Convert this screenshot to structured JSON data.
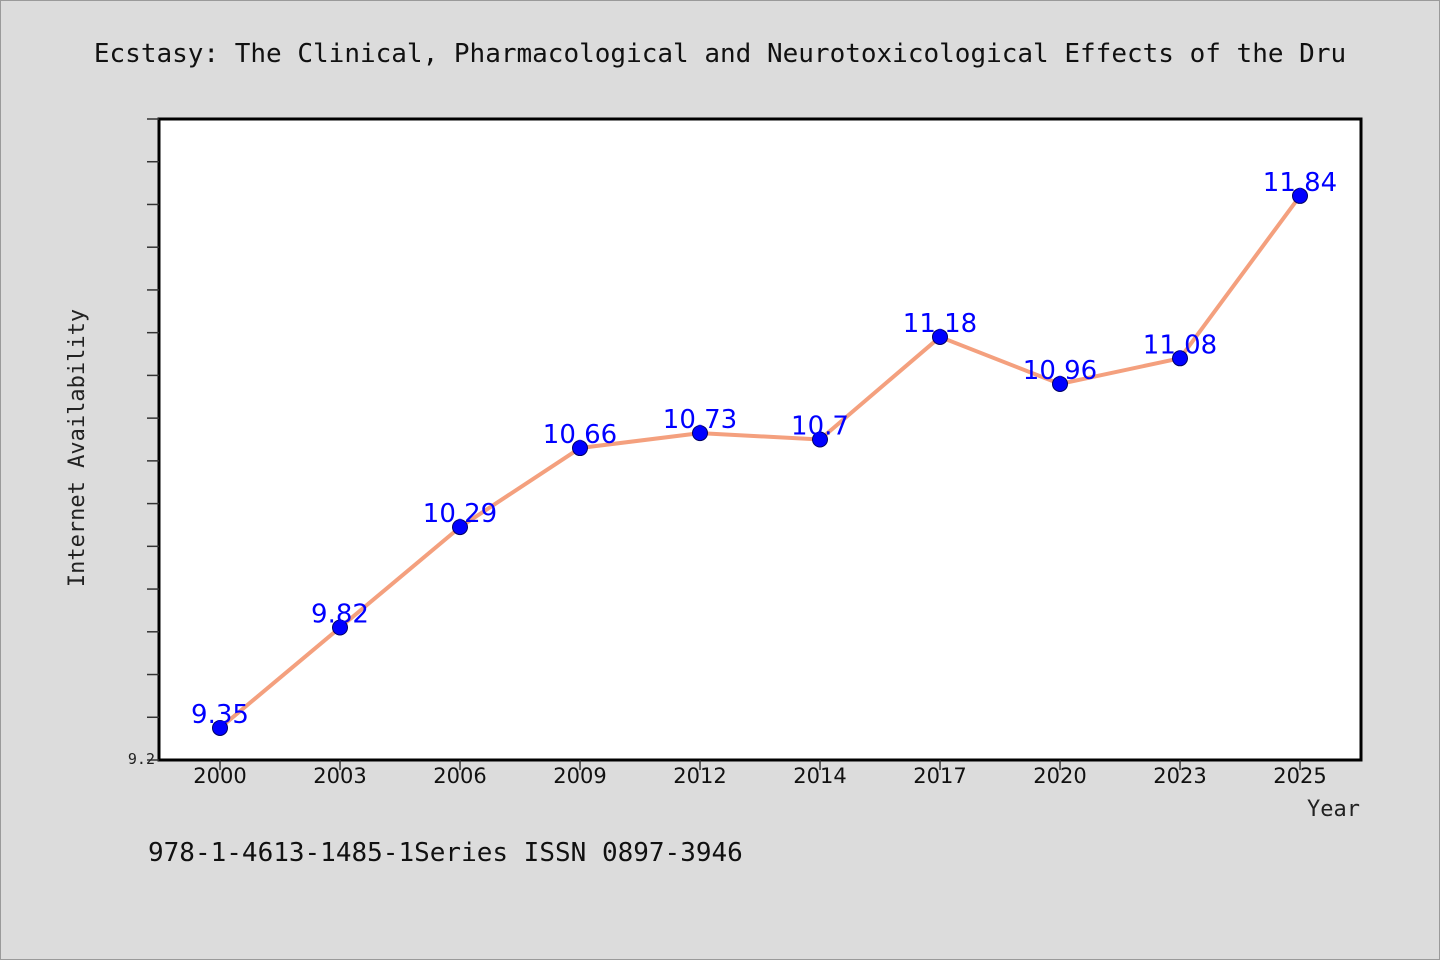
{
  "chart_data": {
    "type": "line",
    "title": "Ecstasy: The Clinical, Pharmacological and Neurotoxicological Effects of the Dru",
    "xlabel": "Year",
    "ylabel": "Internet Availability",
    "categories": [
      "2000",
      "2003",
      "2006",
      "2009",
      "2012",
      "2014",
      "2017",
      "2020",
      "2023",
      "2025"
    ],
    "series": [
      {
        "values": [
          9.35,
          9.82,
          10.29,
          10.66,
          10.73,
          10.7,
          11.18,
          10.96,
          11.08,
          11.84
        ]
      }
    ],
    "data_labels": [
      "9.35",
      "9.82",
      "10.29",
      "10.66",
      "10.73",
      "10.7",
      "11.18",
      "10.96",
      "11.08",
      "11.84"
    ],
    "ylim": [
      9.2,
      12.2
    ],
    "y_tick_labels": [
      "9.2"
    ],
    "y_minor_step": 0.2,
    "grid": false,
    "line_color": "#f4a07e",
    "marker_color": "#0000ff",
    "label_color": "#0000ff"
  },
  "footer": {
    "text": "978-1-4613-1485-1Series ISSN 0897-3946"
  }
}
